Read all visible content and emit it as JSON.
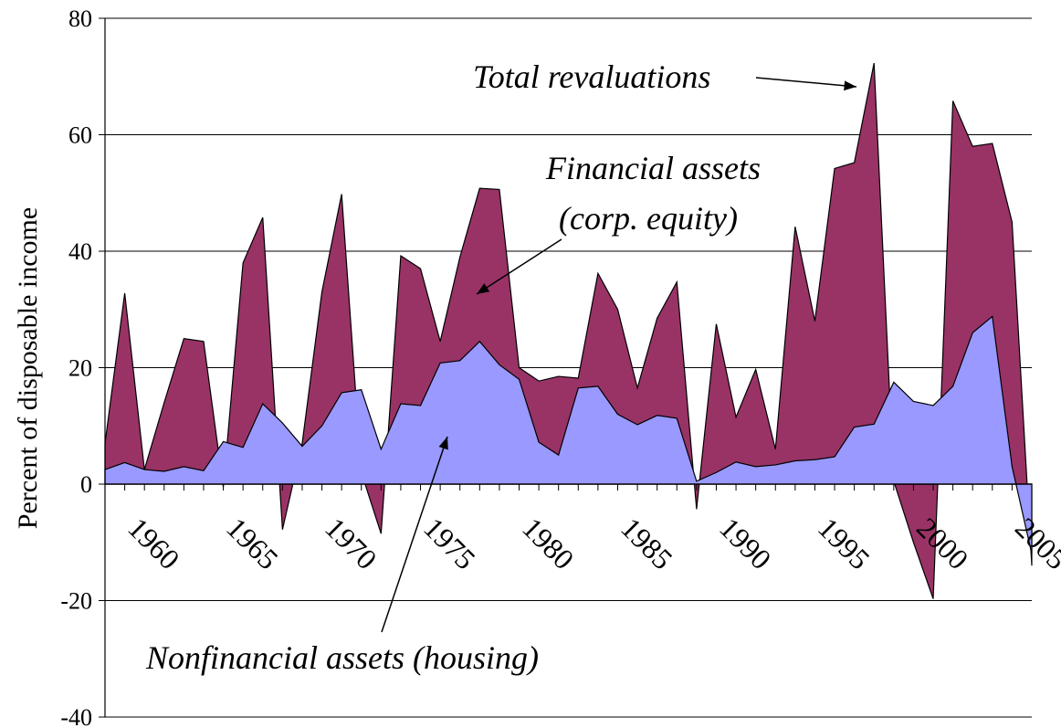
{
  "chart_data": {
    "type": "area",
    "y_label": "Percent of disposable income",
    "x": [
      1958,
      1959,
      1960,
      1961,
      1962,
      1963,
      1964,
      1965,
      1966,
      1967,
      1968,
      1969,
      1970,
      1971,
      1972,
      1973,
      1974,
      1975,
      1976,
      1977,
      1978,
      1979,
      1980,
      1981,
      1982,
      1983,
      1984,
      1985,
      1986,
      1987,
      1988,
      1989,
      1990,
      1991,
      1992,
      1993,
      1994,
      1995,
      1996,
      1997,
      1998,
      1999,
      2000,
      2001,
      2002,
      2003,
      2004,
      2005
    ],
    "series": [
      {
        "name": "Total revaluations",
        "color": "#993366",
        "values": [
          7,
          32.8,
          2.5,
          14,
          25,
          24.5,
          -0.5,
          38,
          45.8,
          -7.8,
          7,
          33,
          49.8,
          2,
          -8.5,
          39.2,
          37,
          24.5,
          39,
          50.8,
          50.6,
          20,
          17.7,
          18.5,
          18.2,
          36.2,
          30,
          16.5,
          28.5,
          34.7,
          -4.3,
          27.5,
          11.5,
          19.7,
          6,
          44.2,
          28,
          54.2,
          55.2,
          72.3,
          0.5,
          -10,
          -19.7,
          65.8,
          58,
          58.5,
          45,
          -14
        ]
      },
      {
        "name": "Nonfinancial assets (housing)",
        "color": "#9999ff",
        "values": [
          2.5,
          3.7,
          2.5,
          2.2,
          3,
          2.3,
          7.3,
          6.3,
          13.8,
          10.5,
          6.5,
          10,
          15.7,
          16.2,
          6,
          13.8,
          13.5,
          20.8,
          21.2,
          24.5,
          20.5,
          18,
          7.2,
          5,
          16.5,
          16.8,
          12,
          10.2,
          11.8,
          11.3,
          0.5,
          2,
          3.8,
          3,
          3.3,
          4,
          4.2,
          4.7,
          9.8,
          10.3,
          17.5,
          14.2,
          13.5,
          16.8,
          26,
          28.8,
          3,
          -12
        ]
      }
    ],
    "annotations": [
      "Financial assets",
      "(corp. equity)"
    ],
    "xlim": [
      1958,
      2005
    ],
    "xticks": [
      1960,
      1965,
      1970,
      1975,
      1980,
      1985,
      1990,
      1995,
      2000,
      2005
    ],
    "ylim": [
      -40,
      80
    ],
    "yticks": [
      -40,
      -20,
      0,
      20,
      40,
      60,
      80
    ],
    "grid": true
  }
}
